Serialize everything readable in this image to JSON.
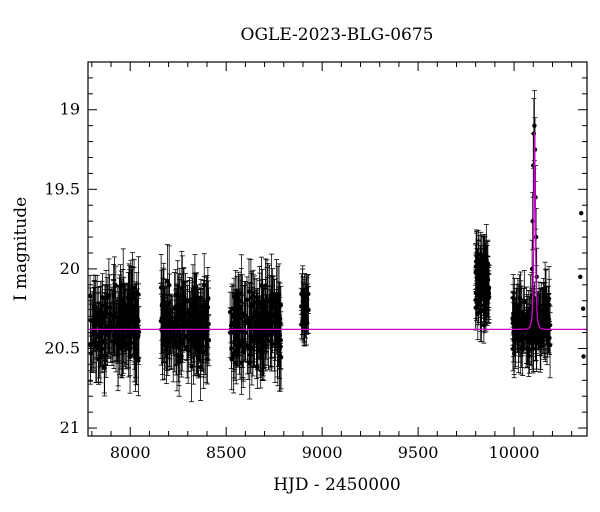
{
  "chart_data": {
    "type": "scatter",
    "title": "OGLE-2023-BLG-0675",
    "xlabel": "HJD - 2450000",
    "ylabel": "I magnitude",
    "xlim": [
      7780,
      10380
    ],
    "ylim": [
      21.05,
      18.7
    ],
    "y_inverted": true,
    "xticks": [
      8000,
      8500,
      9000,
      9500,
      10000
    ],
    "yticks": [
      19,
      19.5,
      20,
      20.5,
      21
    ],
    "grid": false,
    "legend": "none",
    "colors": {
      "points": "#000000",
      "model": "#cc00cc"
    },
    "observing_seasons": [
      {
        "start": 7790,
        "end": 8050,
        "center_mag": 20.35,
        "scatter": 0.28,
        "err": 0.18,
        "count": 200
      },
      {
        "start": 8160,
        "end": 8410,
        "center_mag": 20.35,
        "scatter": 0.28,
        "err": 0.18,
        "count": 200
      },
      {
        "start": 8520,
        "end": 8790,
        "center_mag": 20.35,
        "scatter": 0.28,
        "err": 0.18,
        "count": 200
      },
      {
        "start": 8890,
        "end": 8930,
        "center_mag": 20.25,
        "scatter": 0.18,
        "err": 0.12,
        "count": 35
      },
      {
        "start": 9800,
        "end": 9870,
        "center_mag": 20.1,
        "scatter": 0.22,
        "err": 0.15,
        "count": 90
      },
      {
        "start": 9990,
        "end": 10190,
        "center_mag": 20.35,
        "scatter": 0.22,
        "err": 0.15,
        "count": 150
      }
    ],
    "peak_points": [
      {
        "x": 10100,
        "y": 19.35,
        "err": 0.2
      },
      {
        "x": 10103,
        "y": 19.15,
        "err": 0.22
      },
      {
        "x": 10106,
        "y": 19.1,
        "err": 0.22
      },
      {
        "x": 10109,
        "y": 19.25,
        "err": 0.2
      },
      {
        "x": 10112,
        "y": 19.55,
        "err": 0.2
      },
      {
        "x": 10097,
        "y": 19.7,
        "err": 0.18
      },
      {
        "x": 10115,
        "y": 19.8,
        "err": 0.18
      },
      {
        "x": 10094,
        "y": 20.0,
        "err": 0.18
      },
      {
        "x": 10118,
        "y": 20.05,
        "err": 0.18
      }
    ],
    "extra_points": [
      {
        "x": 10350,
        "y": 19.65
      },
      {
        "x": 10345,
        "y": 20.05
      },
      {
        "x": 10360,
        "y": 20.25
      },
      {
        "x": 10362,
        "y": 20.55
      }
    ],
    "model": {
      "baseline_mag": 20.38,
      "peak_time": 10107,
      "peak_mag": 19.12,
      "timescale_days": 8
    }
  }
}
